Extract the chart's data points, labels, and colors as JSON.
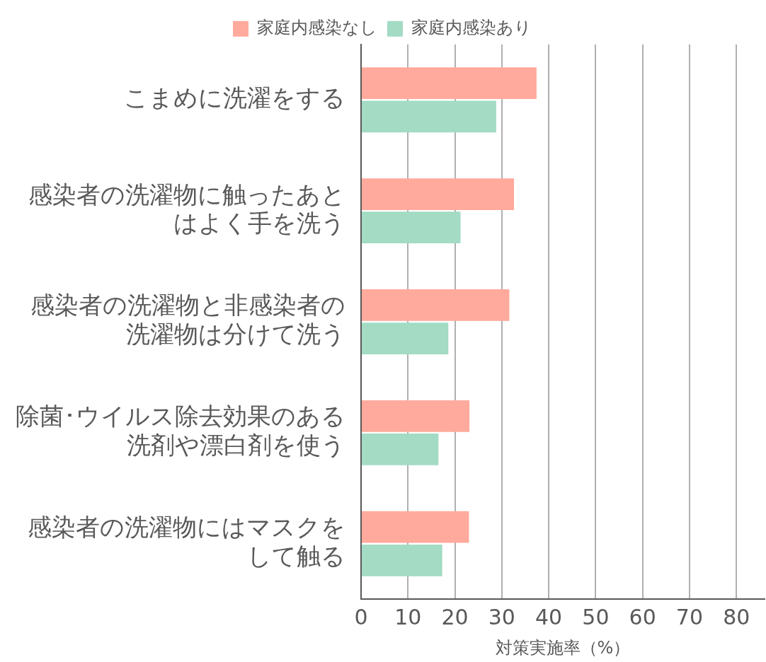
{
  "chart_data": {
    "type": "bar",
    "orientation": "horizontal",
    "categories": [
      "こまめに洗濯をする",
      "感染者の洗濯物に触ったあとはよく手を洗う",
      "感染者の洗濯物と非感染者の洗濯物は分けて洗う",
      "除菌･ウイルス除去効果のある洗剤や漂白剤を使う",
      "感染者の洗濯物にはマスクをして触る"
    ],
    "series": [
      {
        "name": "家庭内感染なし",
        "color": "#ffaa9c",
        "values": [
          37.4,
          32.6,
          31.6,
          23.1,
          23.0
        ]
      },
      {
        "name": "家庭内感染あり",
        "color": "#a3dbc4",
        "values": [
          28.8,
          21.2,
          18.6,
          16.5,
          17.3
        ]
      }
    ],
    "xlabel": "対策実施率（%）",
    "xlim": [
      0,
      86
    ],
    "xticks": [
      0,
      10,
      20,
      30,
      40,
      50,
      60,
      70,
      80
    ],
    "grid": "x",
    "legend": "top"
  }
}
